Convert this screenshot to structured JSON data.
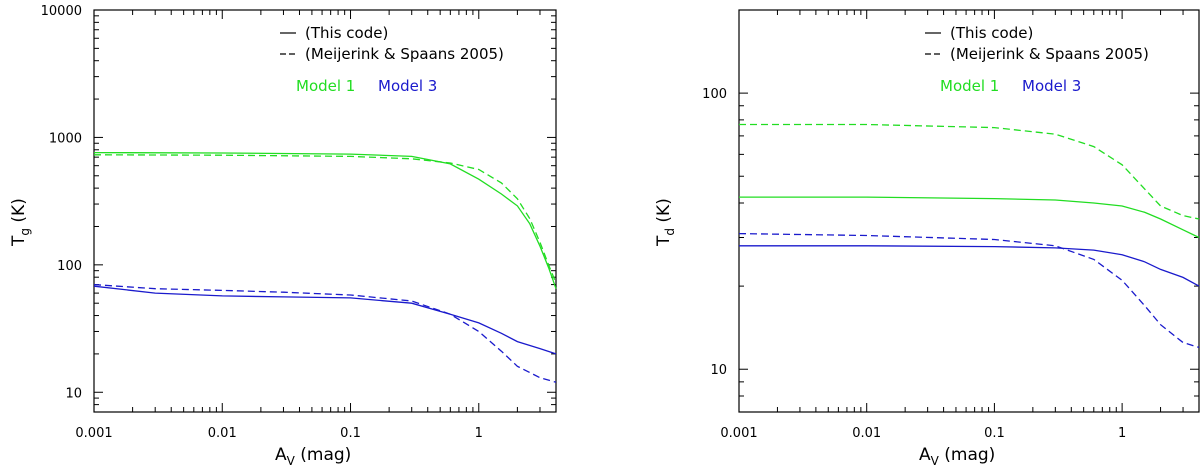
{
  "chart_data": [
    {
      "type": "line",
      "x_scale": "log",
      "y_scale": "log",
      "xlim": [
        0.001,
        4
      ],
      "ylim": [
        7,
        10000
      ],
      "xlabel": {
        "main": "A",
        "sub": "V",
        "unit": " (mag)"
      },
      "ylabel": {
        "main": "T",
        "sub": "g",
        "unit": " (K)"
      },
      "x_ticks": [
        {
          "value": 0.001,
          "label": "0.001"
        },
        {
          "value": 0.01,
          "label": "0.01"
        },
        {
          "value": 0.1,
          "label": "0.1"
        },
        {
          "value": 1,
          "label": "1"
        }
      ],
      "y_ticks": [
        {
          "value": 10,
          "label": "10"
        },
        {
          "value": 100,
          "label": "100"
        },
        {
          "value": 1000,
          "label": "1000"
        },
        {
          "value": 10000,
          "label": "10000"
        }
      ],
      "legend": [
        {
          "style": "solid",
          "label": "(This code)"
        },
        {
          "style": "dashed",
          "label": "(Meijerink & Spaans 2005)"
        }
      ],
      "models": [
        {
          "label": "Model 1",
          "color": "#22dd22"
        },
        {
          "label": "Model 3",
          "color": "#1a1acc"
        }
      ],
      "series": [
        {
          "name": "Model 1 (This code)",
          "color": "#22dd22",
          "style": "solid",
          "x": [
            0.001,
            0.01,
            0.1,
            0.3,
            0.6,
            1,
            1.5,
            2,
            2.5,
            3,
            3.5,
            4
          ],
          "y": [
            760,
            755,
            740,
            710,
            620,
            470,
            360,
            290,
            210,
            140,
            95,
            65
          ]
        },
        {
          "name": "Model 1 (Meijerink & Spaans 2005)",
          "color": "#22dd22",
          "style": "dashed",
          "x": [
            0.001,
            0.01,
            0.1,
            0.3,
            0.6,
            1,
            1.5,
            2,
            2.5,
            3,
            3.5,
            4
          ],
          "y": [
            730,
            725,
            710,
            680,
            630,
            560,
            440,
            330,
            230,
            150,
            100,
            72
          ]
        },
        {
          "name": "Model 3 (This code)",
          "color": "#1a1acc",
          "style": "solid",
          "x": [
            0.001,
            0.003,
            0.01,
            0.03,
            0.1,
            0.3,
            0.6,
            1,
            1.5,
            2,
            3,
            4
          ],
          "y": [
            68,
            60,
            57,
            56,
            55,
            50,
            41,
            35,
            29,
            25,
            22,
            20
          ]
        },
        {
          "name": "Model 3 (Meijerink & Spaans 2005)",
          "color": "#1a1acc",
          "style": "dashed",
          "x": [
            0.001,
            0.003,
            0.01,
            0.03,
            0.1,
            0.3,
            0.6,
            1,
            1.5,
            2,
            3,
            4
          ],
          "y": [
            70,
            65,
            63,
            61,
            58,
            52,
            41,
            30,
            21,
            16,
            13,
            12
          ]
        }
      ]
    },
    {
      "type": "line",
      "x_scale": "log",
      "y_scale": "log",
      "xlim": [
        0.001,
        4
      ],
      "ylim": [
        7,
        200
      ],
      "xlabel": {
        "main": "A",
        "sub": "V",
        "unit": " (mag)"
      },
      "ylabel": {
        "main": "T",
        "sub": "d",
        "unit": " (K)"
      },
      "x_ticks": [
        {
          "value": 0.001,
          "label": "0.001"
        },
        {
          "value": 0.01,
          "label": "0.01"
        },
        {
          "value": 0.1,
          "label": "0.1"
        },
        {
          "value": 1,
          "label": "1"
        }
      ],
      "y_ticks": [
        {
          "value": 10,
          "label": "10"
        },
        {
          "value": 100,
          "label": "100"
        }
      ],
      "legend": [
        {
          "style": "solid",
          "label": "(This code)"
        },
        {
          "style": "dashed",
          "label": "(Meijerink & Spaans 2005)"
        }
      ],
      "models": [
        {
          "label": "Model 1",
          "color": "#22dd22"
        },
        {
          "label": "Model 3",
          "color": "#1a1acc"
        }
      ],
      "series": [
        {
          "name": "Model 1 (This code)",
          "color": "#22dd22",
          "style": "solid",
          "x": [
            0.001,
            0.01,
            0.1,
            0.3,
            0.6,
            1,
            1.5,
            2,
            3,
            4
          ],
          "y": [
            42,
            42,
            41.5,
            41,
            40,
            39,
            37,
            35,
            32,
            30
          ]
        },
        {
          "name": "Model 1 (Meijerink & Spaans 2005)",
          "color": "#22dd22",
          "style": "dashed",
          "x": [
            0.001,
            0.01,
            0.1,
            0.3,
            0.6,
            1,
            1.5,
            2,
            3,
            4
          ],
          "y": [
            77,
            77,
            75,
            71,
            64,
            55,
            45,
            39,
            36,
            35
          ]
        },
        {
          "name": "Model 3 (This code)",
          "color": "#1a1acc",
          "style": "solid",
          "x": [
            0.001,
            0.01,
            0.1,
            0.3,
            0.6,
            1,
            1.5,
            2,
            3,
            4
          ],
          "y": [
            28,
            28,
            27.8,
            27.5,
            27,
            26,
            24.5,
            23,
            21.5,
            20
          ]
        },
        {
          "name": "Model 3 (Meijerink & Spaans 2005)",
          "color": "#1a1acc",
          "style": "dashed",
          "x": [
            0.001,
            0.01,
            0.1,
            0.3,
            0.6,
            1,
            1.5,
            2,
            3,
            4
          ],
          "y": [
            31,
            30.5,
            29.5,
            28,
            25,
            21,
            17,
            14.5,
            12.5,
            12
          ]
        }
      ]
    }
  ]
}
